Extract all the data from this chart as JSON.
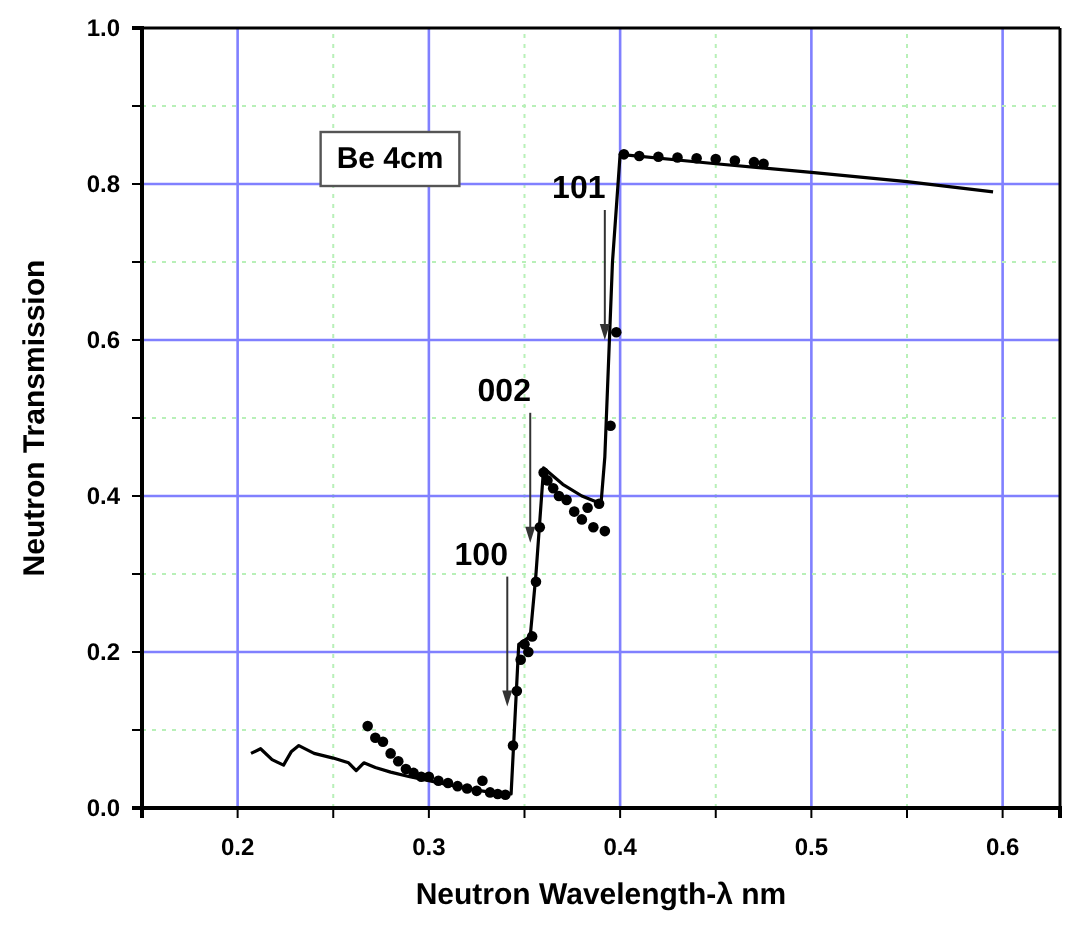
{
  "chart_data": {
    "type": "line",
    "xlabel": "Neutron Wavelength-λ nm",
    "ylabel": "Neutron Transmission",
    "xlim": [
      0.15,
      0.63
    ],
    "ylim": [
      0,
      1
    ],
    "xticks": [
      {
        "value": 0.15,
        "label": null
      },
      0.2,
      {
        "value": 0.25,
        "label": null
      },
      0.3,
      {
        "value": 0.35,
        "label": null
      },
      0.4,
      {
        "value": 0.45,
        "label": null
      },
      0.5,
      {
        "value": 0.55,
        "label": null
      },
      0.6
    ],
    "yticks": [
      {
        "value": 0,
        "label": "0.0"
      },
      {
        "value": 0.1,
        "label": null
      },
      0.2,
      {
        "value": 0.3,
        "label": null
      },
      0.4,
      {
        "value": 0.5,
        "label": null
      },
      0.6,
      {
        "value": 0.7,
        "label": null
      },
      0.8,
      {
        "value": 0.9,
        "label": null
      },
      {
        "value": 1,
        "label": "1.0"
      }
    ],
    "grid": true,
    "annotations": [
      "Be 4cm",
      {
        "text": "100",
        "x": 0.341,
        "y": 0.13
      },
      {
        "text": "002",
        "x": 0.353,
        "y": 0.34
      },
      {
        "text": "101",
        "x": 0.392,
        "y": 0.6
      }
    ],
    "series": [
      {
        "color": "#000000",
        "marker": "none",
        "x": [
          0.207,
          0.212,
          0.218,
          0.224,
          0.228,
          0.232,
          0.24,
          0.25,
          0.258,
          0.262,
          0.266,
          0.272,
          0.28,
          0.29,
          0.3,
          0.31,
          0.32,
          0.33,
          0.342,
          0.343,
          0.347,
          0.353,
          0.356,
          0.36,
          0.37,
          0.38,
          0.39,
          0.392,
          0.396,
          0.4,
          0.45,
          0.5,
          0.55,
          0.595
        ],
        "values": [
          0.07,
          0.076,
          0.062,
          0.055,
          0.072,
          0.08,
          0.07,
          0.064,
          0.058,
          0.048,
          0.058,
          0.052,
          0.046,
          0.04,
          0.035,
          0.03,
          0.025,
          0.021,
          0.018,
          0.018,
          0.21,
          0.22,
          0.3,
          0.436,
          0.415,
          0.4,
          0.39,
          0.45,
          0.7,
          0.838,
          0.826,
          0.815,
          0.803,
          0.79
        ]
      },
      {
        "type": "scatter",
        "color": "#000000",
        "marker": "circle",
        "x": [
          0.268,
          0.272,
          0.276,
          0.28,
          0.284,
          0.288,
          0.292,
          0.296,
          0.3,
          0.305,
          0.31,
          0.315,
          0.32,
          0.325,
          0.328,
          0.332,
          0.336,
          0.34,
          0.344,
          0.346,
          0.348,
          0.35,
          0.352,
          0.354,
          0.356,
          0.358,
          0.36,
          0.362,
          0.365,
          0.368,
          0.372,
          0.376,
          0.38,
          0.383,
          0.386,
          0.389,
          0.392,
          0.395,
          0.398,
          0.402,
          0.41,
          0.42,
          0.43,
          0.44,
          0.45,
          0.46,
          0.47,
          0.475
        ],
        "values": [
          0.105,
          0.09,
          0.085,
          0.07,
          0.06,
          0.05,
          0.045,
          0.04,
          0.04,
          0.035,
          0.032,
          0.028,
          0.025,
          0.022,
          0.035,
          0.02,
          0.018,
          0.017,
          0.08,
          0.15,
          0.19,
          0.21,
          0.2,
          0.22,
          0.29,
          0.36,
          0.43,
          0.42,
          0.41,
          0.4,
          0.395,
          0.38,
          0.37,
          0.385,
          0.36,
          0.39,
          0.355,
          0.49,
          0.61,
          0.838,
          0.836,
          0.835,
          0.834,
          0.833,
          0.832,
          0.83,
          0.828,
          0.826
        ]
      }
    ]
  }
}
